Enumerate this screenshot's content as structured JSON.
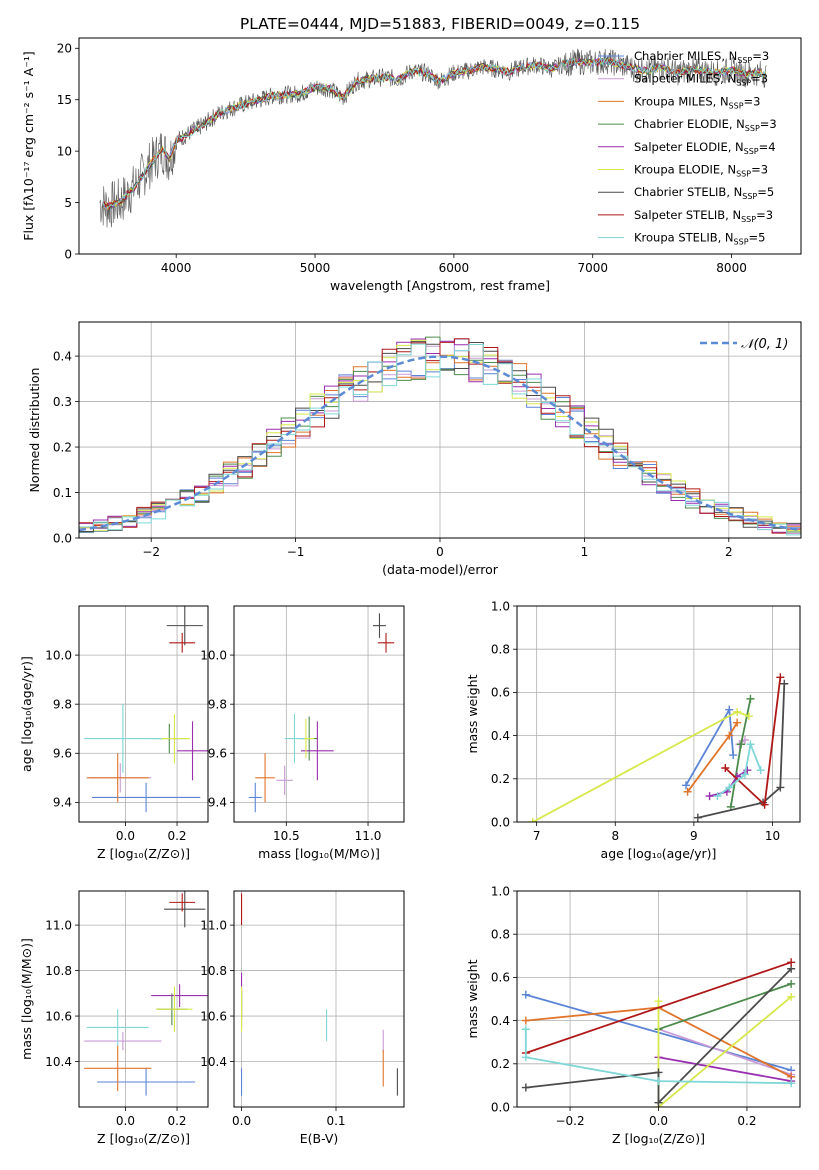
{
  "figure_title": "PLATE=0444, MJD=51883, FIBERID=0049, z=0.115",
  "models": [
    {
      "name": "Chabrier MILES",
      "nssp": "3",
      "color": "#5b84d6"
    },
    {
      "name": "Salpeter MILES",
      "nssp": "3",
      "color": "#c99bd6"
    },
    {
      "name": "Kroupa MILES",
      "nssp": "3",
      "color": "#e0742a"
    },
    {
      "name": "Chabrier ELODIE",
      "nssp": "3",
      "color": "#4c8a4c"
    },
    {
      "name": "Salpeter ELODIE",
      "nssp": "4",
      "color": "#9a2fb0"
    },
    {
      "name": "Kroupa ELODIE",
      "nssp": "3",
      "color": "#d7e84a"
    },
    {
      "name": "Chabrier STELIB",
      "nssp": "5",
      "color": "#4a4a4a"
    },
    {
      "name": "Salpeter STELIB",
      "nssp": "3",
      "color": "#b01818"
    },
    {
      "name": "Kroupa STELIB",
      "nssp": "5",
      "color": "#7fd6d6"
    }
  ],
  "chart_data": [
    {
      "id": "spectrum",
      "type": "line",
      "xlabel": "wavelength [Angstrom, rest frame]",
      "ylabel": "Flux [fλ10⁻¹⁷ erg cm⁻² s⁻¹ A⁻¹]",
      "xlim": [
        3300,
        8500
      ],
      "ylim": [
        0,
        21
      ],
      "xticks": [
        4000,
        5000,
        6000,
        7000,
        8000
      ],
      "yticks": [
        0,
        5,
        10,
        15,
        20
      ],
      "grid": false,
      "legend": "right",
      "x": [
        3450,
        3500,
        3600,
        3700,
        3800,
        3900,
        3950,
        4000,
        4100,
        4200,
        4300,
        4400,
        4500,
        4600,
        4700,
        4800,
        4900,
        5000,
        5100,
        5200,
        5300,
        5400,
        5500,
        5600,
        5700,
        5800,
        5900,
        6000,
        6100,
        6200,
        6300,
        6400,
        6500,
        6600,
        6700,
        6800,
        6900,
        7000,
        7100,
        7200,
        7300,
        7400,
        7500,
        7600,
        7700,
        7800,
        7900,
        8000,
        8100,
        8200,
        8250
      ],
      "y": [
        5.0,
        4.6,
        5.1,
        6.5,
        8.5,
        10.2,
        9.2,
        11.0,
        11.8,
        12.6,
        13.6,
        14.2,
        14.6,
        15.0,
        15.4,
        15.5,
        15.6,
        16.2,
        16.1,
        15.2,
        16.8,
        17.0,
        17.2,
        17.0,
        17.8,
        17.6,
        16.8,
        17.6,
        17.8,
        18.2,
        18.0,
        17.7,
        18.2,
        18.4,
        18.0,
        18.5,
        18.7,
        18.6,
        18.8,
        18.4,
        18.0,
        17.8,
        18.2,
        17.6,
        17.9,
        17.8,
        17.6,
        17.9,
        17.5,
        17.6,
        17.4
      ]
    },
    {
      "id": "residuals",
      "type": "histogram",
      "xlabel": "(data-model)/error",
      "ylabel": "Normed distribution",
      "xlim": [
        -2.5,
        2.5
      ],
      "ylim": [
        0,
        0.475
      ],
      "xticks": [
        -2,
        -1,
        0,
        1,
        2
      ],
      "yticks": [
        0.0,
        0.1,
        0.2,
        0.3,
        0.4
      ],
      "grid": true,
      "legend": "top-right",
      "reference_label": "𝒩(0, 1)",
      "reference": {
        "mean": 0,
        "sigma": 1
      }
    },
    {
      "id": "age-vs-Z",
      "type": "scatter",
      "xlabel": "Z [log₁₀(Z/Z⊙)]",
      "ylabel": "age  [log₁₀(age/yr)]",
      "xlim": [
        -0.18,
        0.32
      ],
      "ylim": [
        9.32,
        10.2
      ],
      "xticks": [
        0.0,
        0.2
      ],
      "yticks": [
        9.4,
        9.6,
        9.8,
        10.0
      ],
      "grid": true,
      "points": [
        {
          "model": 0,
          "x": 0.08,
          "y": 9.42,
          "xerr": 0.21,
          "yerr": 0.06
        },
        {
          "model": 1,
          "x": -0.02,
          "y": 9.5,
          "xerr": 0.12,
          "yerr": 0.06
        },
        {
          "model": 2,
          "x": -0.03,
          "y": 9.5,
          "xerr": 0.12,
          "yerr": 0.1
        },
        {
          "model": 3,
          "x": 0.17,
          "y": 9.66,
          "xerr": 0.07,
          "yerr": 0.06
        },
        {
          "model": 4,
          "x": 0.26,
          "y": 9.61,
          "xerr": 0.06,
          "yerr": 0.12
        },
        {
          "model": 5,
          "x": 0.19,
          "y": 9.66,
          "xerr": 0.06,
          "yerr": 0.1
        },
        {
          "model": 6,
          "x": 0.23,
          "y": 10.12,
          "xerr": 0.07,
          "yerr": 0.08
        },
        {
          "model": 7,
          "x": 0.22,
          "y": 10.05,
          "xerr": 0.05,
          "yerr": 0.04
        },
        {
          "model": 8,
          "x": -0.01,
          "y": 9.66,
          "xerr": 0.15,
          "yerr": 0.14
        }
      ]
    },
    {
      "id": "age-vs-mass",
      "type": "scatter",
      "xlabel": "mass [log₁₀(M/M⊙)]",
      "ylabel": "",
      "xlim": [
        10.18,
        11.22
      ],
      "ylim": [
        9.32,
        10.2
      ],
      "xticks": [
        10.5,
        11.0
      ],
      "yticks": [
        9.4,
        9.6,
        9.8,
        10.0
      ],
      "grid": true,
      "points": [
        {
          "model": 0,
          "x": 10.31,
          "y": 9.42,
          "xerr": 0.04,
          "yerr": 0.06
        },
        {
          "model": 1,
          "x": 10.49,
          "y": 9.49,
          "xerr": 0.05,
          "yerr": 0.06
        },
        {
          "model": 2,
          "x": 10.37,
          "y": 9.5,
          "xerr": 0.06,
          "yerr": 0.1
        },
        {
          "model": 3,
          "x": 10.64,
          "y": 9.66,
          "xerr": 0.05,
          "yerr": 0.09
        },
        {
          "model": 4,
          "x": 10.69,
          "y": 9.61,
          "xerr": 0.1,
          "yerr": 0.12
        },
        {
          "model": 5,
          "x": 10.62,
          "y": 9.66,
          "xerr": 0.05,
          "yerr": 0.08
        },
        {
          "model": 6,
          "x": 11.07,
          "y": 10.12,
          "xerr": 0.04,
          "yerr": 0.05
        },
        {
          "model": 7,
          "x": 11.11,
          "y": 10.05,
          "xerr": 0.05,
          "yerr": 0.04
        },
        {
          "model": 8,
          "x": 10.55,
          "y": 9.66,
          "xerr": 0.06,
          "yerr": 0.1
        }
      ]
    },
    {
      "id": "weight-vs-age",
      "type": "line",
      "xlabel": "age  [log₁₀(age/yr)]",
      "ylabel": "mass weight",
      "xlim": [
        6.75,
        10.35
      ],
      "ylim": [
        0,
        1.0
      ],
      "xticks": [
        7,
        8,
        9,
        10
      ],
      "yticks": [
        0.0,
        0.2,
        0.4,
        0.6,
        0.8,
        1.0
      ],
      "grid": true,
      "series": [
        {
          "model": 0,
          "x": [
            8.9,
            9.45,
            9.5
          ],
          "y": [
            0.17,
            0.52,
            0.31
          ]
        },
        {
          "model": 1,
          "x": [
            9.58,
            9.65
          ],
          "y": [
            0.36,
            0.38
          ]
        },
        {
          "model": 2,
          "x": [
            8.92,
            9.45,
            9.55
          ],
          "y": [
            0.14,
            0.4,
            0.46
          ]
        },
        {
          "model": 3,
          "x": [
            9.47,
            9.6,
            9.72
          ],
          "y": [
            0.07,
            0.36,
            0.57
          ]
        },
        {
          "model": 4,
          "x": [
            9.2,
            9.42,
            9.55,
            9.68
          ],
          "y": [
            0.12,
            0.14,
            0.21,
            0.24
          ]
        },
        {
          "model": 5,
          "x": [
            6.95,
            9.55,
            9.7
          ],
          "y": [
            0.0,
            0.51,
            0.49
          ]
        },
        {
          "model": 6,
          "x": [
            9.05,
            9.88,
            10.1,
            10.15
          ],
          "y": [
            0.02,
            0.09,
            0.16,
            0.64
          ]
        },
        {
          "model": 7,
          "x": [
            9.4,
            9.9,
            10.1
          ],
          "y": [
            0.25,
            0.08,
            0.67
          ]
        },
        {
          "model": 8,
          "x": [
            9.3,
            9.45,
            9.65,
            9.72,
            9.85
          ],
          "y": [
            0.12,
            0.16,
            0.22,
            0.36,
            0.24
          ]
        }
      ]
    },
    {
      "id": "mass-vs-Z",
      "type": "scatter",
      "xlabel": "Z [log₁₀(Z/Z⊙)]",
      "ylabel": "mass [log₁₀(M/M⊙)]",
      "xlim": [
        -0.18,
        0.32
      ],
      "ylim": [
        10.2,
        11.15
      ],
      "xticks": [
        0.0,
        0.2
      ],
      "yticks": [
        10.4,
        10.6,
        10.8,
        11.0
      ],
      "grid": true,
      "points": [
        {
          "model": 0,
          "x": 0.08,
          "y": 10.31,
          "xerr": 0.19,
          "yerr": 0.06
        },
        {
          "model": 1,
          "x": -0.01,
          "y": 10.49,
          "xerr": 0.15,
          "yerr": 0.04
        },
        {
          "model": 2,
          "x": -0.03,
          "y": 10.37,
          "xerr": 0.13,
          "yerr": 0.1
        },
        {
          "model": 3,
          "x": 0.18,
          "y": 10.63,
          "xerr": 0.06,
          "yerr": 0.07
        },
        {
          "model": 4,
          "x": 0.21,
          "y": 10.69,
          "xerr": 0.11,
          "yerr": 0.05
        },
        {
          "model": 5,
          "x": 0.19,
          "y": 10.63,
          "xerr": 0.07,
          "yerr": 0.1
        },
        {
          "model": 6,
          "x": 0.23,
          "y": 11.07,
          "xerr": 0.08,
          "yerr": 0.08
        },
        {
          "model": 7,
          "x": 0.22,
          "y": 11.1,
          "xerr": 0.05,
          "yerr": 0.04
        },
        {
          "model": 8,
          "x": -0.03,
          "y": 10.55,
          "xerr": 0.12,
          "yerr": 0.08
        }
      ]
    },
    {
      "id": "mass-vs-ebv",
      "type": "scatter",
      "xlabel": "E(B-V)",
      "ylabel": "",
      "xlim": [
        -0.008,
        0.172
      ],
      "ylim": [
        10.2,
        11.15
      ],
      "xticks": [
        0.0,
        0.1
      ],
      "yticks": [
        10.4,
        10.6,
        10.8,
        11.0
      ],
      "grid": true,
      "points": [
        {
          "model": 0,
          "x": 0.0,
          "y": 10.31,
          "xerr": 0,
          "yerr": 0.06
        },
        {
          "model": 1,
          "x": 0.15,
          "y": 10.49,
          "xerr": 0,
          "yerr": 0.05
        },
        {
          "model": 2,
          "x": 0.15,
          "y": 10.37,
          "xerr": 0,
          "yerr": 0.08
        },
        {
          "model": 3,
          "x": 0.0,
          "y": 10.63,
          "xerr": 0,
          "yerr": 0.08
        },
        {
          "model": 4,
          "x": 0.0,
          "y": 10.69,
          "xerr": 0,
          "yerr": 0.1
        },
        {
          "model": 5,
          "x": 0.0,
          "y": 10.63,
          "xerr": 0,
          "yerr": 0.1
        },
        {
          "model": 6,
          "x": 0.165,
          "y": 10.31,
          "xerr": 0,
          "yerr": 0.06
        },
        {
          "model": 7,
          "x": 0.0,
          "y": 11.07,
          "xerr": 0,
          "yerr": 0.07
        },
        {
          "model": 8,
          "x": 0.09,
          "y": 10.56,
          "xerr": 0,
          "yerr": 0.07
        }
      ]
    },
    {
      "id": "weight-vs-Z",
      "type": "line",
      "xlabel": "Z [log₁₀(Z/Z⊙)]",
      "ylabel": "mass weight",
      "xlim": [
        -0.32,
        0.32
      ],
      "ylim": [
        0,
        1.0
      ],
      "xticks": [
        -0.2,
        0.0,
        0.2
      ],
      "yticks": [
        0.0,
        0.2,
        0.4,
        0.6,
        0.8,
        1.0
      ],
      "grid": true,
      "series": [
        {
          "model": 0,
          "x": [
            -0.3,
            0.3
          ],
          "y": [
            0.52,
            0.17
          ]
        },
        {
          "model": 1,
          "x": [
            0.0,
            0.3
          ],
          "y": [
            0.36,
            0.15
          ]
        },
        {
          "model": 2,
          "x": [
            -0.3,
            0.0,
            0.3
          ],
          "y": [
            0.4,
            0.46,
            0.14
          ]
        },
        {
          "model": 3,
          "x": [
            0.0,
            0.3
          ],
          "y": [
            0.36,
            0.57
          ]
        },
        {
          "model": 4,
          "x": [
            0.0,
            0.3
          ],
          "y": [
            0.23,
            0.12
          ]
        },
        {
          "model": 5,
          "x": [
            0.0,
            0.0,
            0.3
          ],
          "y": [
            0.49,
            0.0,
            0.51
          ]
        },
        {
          "model": 6,
          "x": [
            -0.3,
            0.0,
            0.0,
            0.3
          ],
          "y": [
            0.09,
            0.16,
            0.02,
            0.64
          ]
        },
        {
          "model": 7,
          "x": [
            -0.3,
            0.3
          ],
          "y": [
            0.25,
            0.67
          ]
        },
        {
          "model": 8,
          "x": [
            -0.3,
            -0.3,
            0.0,
            0.3
          ],
          "y": [
            0.36,
            0.23,
            0.12,
            0.11
          ]
        }
      ]
    }
  ]
}
